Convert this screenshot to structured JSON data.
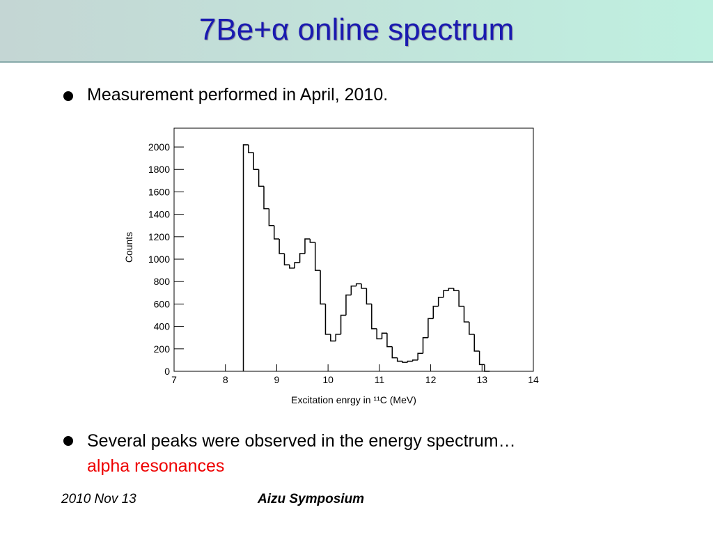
{
  "header": {
    "title": "7Be+α online spectrum"
  },
  "bullets": [
    "Measurement performed in April, 2010.",
    "Several peaks were observed in the energy spectrum…"
  ],
  "bullet_highlight": "alpha resonances",
  "footer": {
    "date": "2010 Nov 13",
    "event": "Aizu Symposium"
  },
  "chart_data": {
    "type": "histogram",
    "x_label": "Excitation enrgy in ¹¹C (MeV)",
    "y_label": "Counts",
    "bins": [
      8.35,
      8.45,
      8.55,
      8.65,
      8.75,
      8.85,
      8.95,
      9.05,
      9.15,
      9.25,
      9.35,
      9.45,
      9.55,
      9.65,
      9.75,
      9.85,
      9.95,
      10.05,
      10.15,
      10.25,
      10.35,
      10.45,
      10.55,
      10.65,
      10.75,
      10.85,
      10.95,
      11.05,
      11.15,
      11.25,
      11.35,
      11.45,
      11.55,
      11.65,
      11.75,
      11.85,
      11.95,
      12.05,
      12.15,
      12.25,
      12.35,
      12.45,
      12.55,
      12.65,
      12.75,
      12.85,
      12.95,
      13.05,
      13.15
    ],
    "values": [
      2020,
      1950,
      1800,
      1650,
      1450,
      1300,
      1180,
      1050,
      950,
      920,
      970,
      1050,
      1180,
      1150,
      900,
      600,
      330,
      270,
      330,
      500,
      680,
      760,
      780,
      740,
      600,
      380,
      290,
      340,
      220,
      120,
      90,
      80,
      90,
      100,
      160,
      300,
      470,
      580,
      660,
      720,
      740,
      720,
      580,
      440,
      330,
      180,
      60,
      0
    ],
    "color": "#000000",
    "xlim": [
      7,
      14
    ],
    "xticks": [
      7,
      8,
      9,
      10,
      11,
      12,
      13,
      14
    ],
    "ylim": [
      0,
      2168
    ],
    "yticks": [
      0,
      200,
      400,
      600,
      800,
      1000,
      1200,
      1400,
      1600,
      1800,
      2000
    ]
  }
}
